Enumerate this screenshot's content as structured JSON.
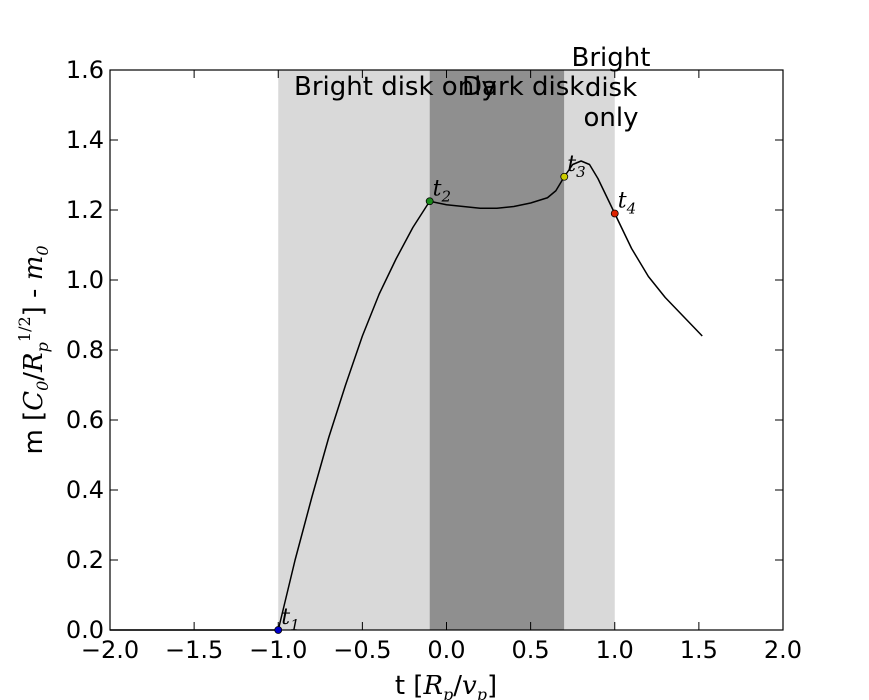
{
  "chart_data": {
    "type": "line",
    "xlabel": "t [R_p/v_p]",
    "ylabel": "m [C_0/R_p^{1/2}] - m_0",
    "xlim": [
      -2.0,
      2.0
    ],
    "ylim": [
      0.0,
      1.6
    ],
    "xticks": [
      "−2.0",
      "−1.5",
      "−1.0",
      "−0.5",
      "0.0",
      "0.5",
      "1.0",
      "1.5",
      "2.0"
    ],
    "yticks": [
      "0.0",
      "0.2",
      "0.4",
      "0.6",
      "0.8",
      "1.0",
      "1.2",
      "1.4",
      "1.6"
    ],
    "grid": false,
    "regions": [
      {
        "label": "Bright disk only",
        "x0": -1.0,
        "x1": -0.1,
        "color": "#d9d9d9"
      },
      {
        "label": "Dark disk",
        "x0": -0.1,
        "x1": 0.7,
        "color": "#8f8f8f"
      },
      {
        "label": "Bright disk only",
        "x0": 0.7,
        "x1": 1.0,
        "color": "#d9d9d9"
      }
    ],
    "series": [
      {
        "color": "#000000",
        "x": [
          -2.0,
          -1.5,
          -1.0,
          -0.9,
          -0.8,
          -0.7,
          -0.6,
          -0.5,
          -0.4,
          -0.3,
          -0.2,
          -0.1,
          0.0,
          0.1,
          0.2,
          0.3,
          0.4,
          0.5,
          0.6,
          0.65,
          0.7,
          0.75,
          0.8,
          0.85,
          0.9,
          0.95,
          1.0,
          1.1,
          1.2,
          1.3,
          1.4,
          1.5,
          1.52
        ],
        "y": [
          0.0,
          0.0,
          0.0,
          0.2,
          0.38,
          0.55,
          0.7,
          0.84,
          0.96,
          1.06,
          1.15,
          1.225,
          1.215,
          1.21,
          1.205,
          1.205,
          1.21,
          1.22,
          1.235,
          1.255,
          1.295,
          1.33,
          1.34,
          1.33,
          1.29,
          1.24,
          1.19,
          1.09,
          1.01,
          0.95,
          0.9,
          0.85,
          0.84
        ]
      }
    ],
    "points": [
      {
        "label": "t",
        "sub": "1",
        "x": -1.0,
        "y": 0.0,
        "color": "#0000cc"
      },
      {
        "label": "t",
        "sub": "2",
        "x": -0.1,
        "y": 1.225,
        "color": "#1a8a1a"
      },
      {
        "label": "t",
        "sub": "3",
        "x": 0.7,
        "y": 1.295,
        "color": "#cccc00"
      },
      {
        "label": "t",
        "sub": "4",
        "x": 1.0,
        "y": 1.19,
        "color": "#dd2200"
      }
    ]
  }
}
